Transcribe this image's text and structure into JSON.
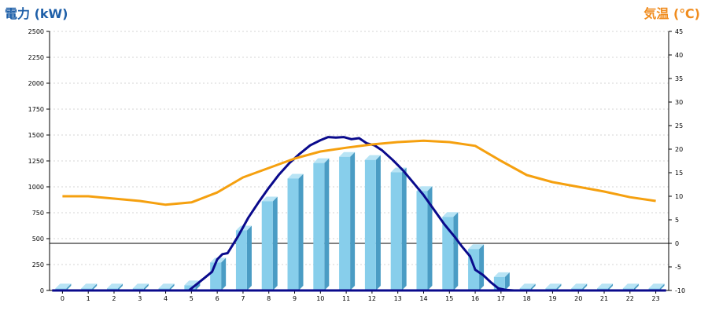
{
  "chart_data": {
    "type": "bar",
    "left_axis_label": "電力 (kW)",
    "right_axis_label": "気温 (℃)",
    "left_ylim": [
      0,
      2500
    ],
    "left_ticks": [
      0,
      250,
      500,
      750,
      1000,
      1250,
      1500,
      1750,
      2000,
      2250,
      2500
    ],
    "right_ylim": [
      -10,
      45
    ],
    "right_ticks": [
      -10,
      -5,
      0,
      5,
      10,
      15,
      20,
      25,
      30,
      35,
      40,
      45
    ],
    "categories": [
      "0",
      "1",
      "2",
      "3",
      "4",
      "5",
      "6",
      "7",
      "8",
      "9",
      "10",
      "11",
      "12",
      "13",
      "14",
      "15",
      "16",
      "17",
      "18",
      "19",
      "20",
      "21",
      "22",
      "23"
    ],
    "grid": true,
    "colors": {
      "bar": "#87ceeb",
      "bar_side": "#4a9cc4",
      "bar_top": "#b8e4f5",
      "power_line": "#0a0a8c",
      "temperature_line": "#f5a00f",
      "zero_line": "#000000"
    },
    "series": [
      {
        "kind": "bar",
        "axis": "left",
        "values": [
          20,
          20,
          20,
          20,
          20,
          50,
          270,
          580,
          860,
          1080,
          1230,
          1290,
          1260,
          1140,
          960,
          710,
          400,
          130,
          20,
          20,
          20,
          20,
          20,
          20
        ]
      },
      {
        "kind": "line",
        "axis": "left",
        "x": [
          -0.4,
          4.9,
          5.5,
          5.8,
          6.0,
          6.2,
          6.4,
          6.8,
          7.2,
          7.6,
          8.0,
          8.4,
          8.8,
          9.2,
          9.6,
          10.0,
          10.3,
          10.6,
          10.9,
          11.2,
          11.5,
          11.8,
          12.1,
          12.4,
          12.8,
          13.2,
          13.6,
          14.0,
          14.4,
          14.8,
          15.2,
          15.5,
          15.8,
          16.0,
          16.3,
          16.6,
          16.9,
          17.2,
          17.5,
          -0.1,
          23.4
        ],
        "y": [
          0,
          0,
          120,
          180,
          300,
          350,
          360,
          520,
          700,
          850,
          990,
          1120,
          1230,
          1320,
          1400,
          1450,
          1480,
          1475,
          1480,
          1460,
          1470,
          1420,
          1400,
          1350,
          1260,
          1160,
          1040,
          920,
          780,
          640,
          520,
          420,
          330,
          200,
          150,
          80,
          20,
          5,
          0,
          0,
          0
        ]
      },
      {
        "kind": "line",
        "axis": "right",
        "x": [
          0,
          1,
          2,
          3,
          4,
          5,
          6,
          7,
          8,
          9,
          10,
          11,
          12,
          13,
          14,
          15,
          16,
          17,
          18,
          19,
          20,
          21,
          22,
          23
        ],
        "y": [
          10,
          10,
          9.5,
          9,
          8.2,
          8.7,
          10.8,
          14,
          16,
          18,
          19.5,
          20.3,
          21,
          21.5,
          21.8,
          21.5,
          20.7,
          17.5,
          14.5,
          13,
          12,
          11,
          9.8,
          9
        ]
      }
    ]
  }
}
